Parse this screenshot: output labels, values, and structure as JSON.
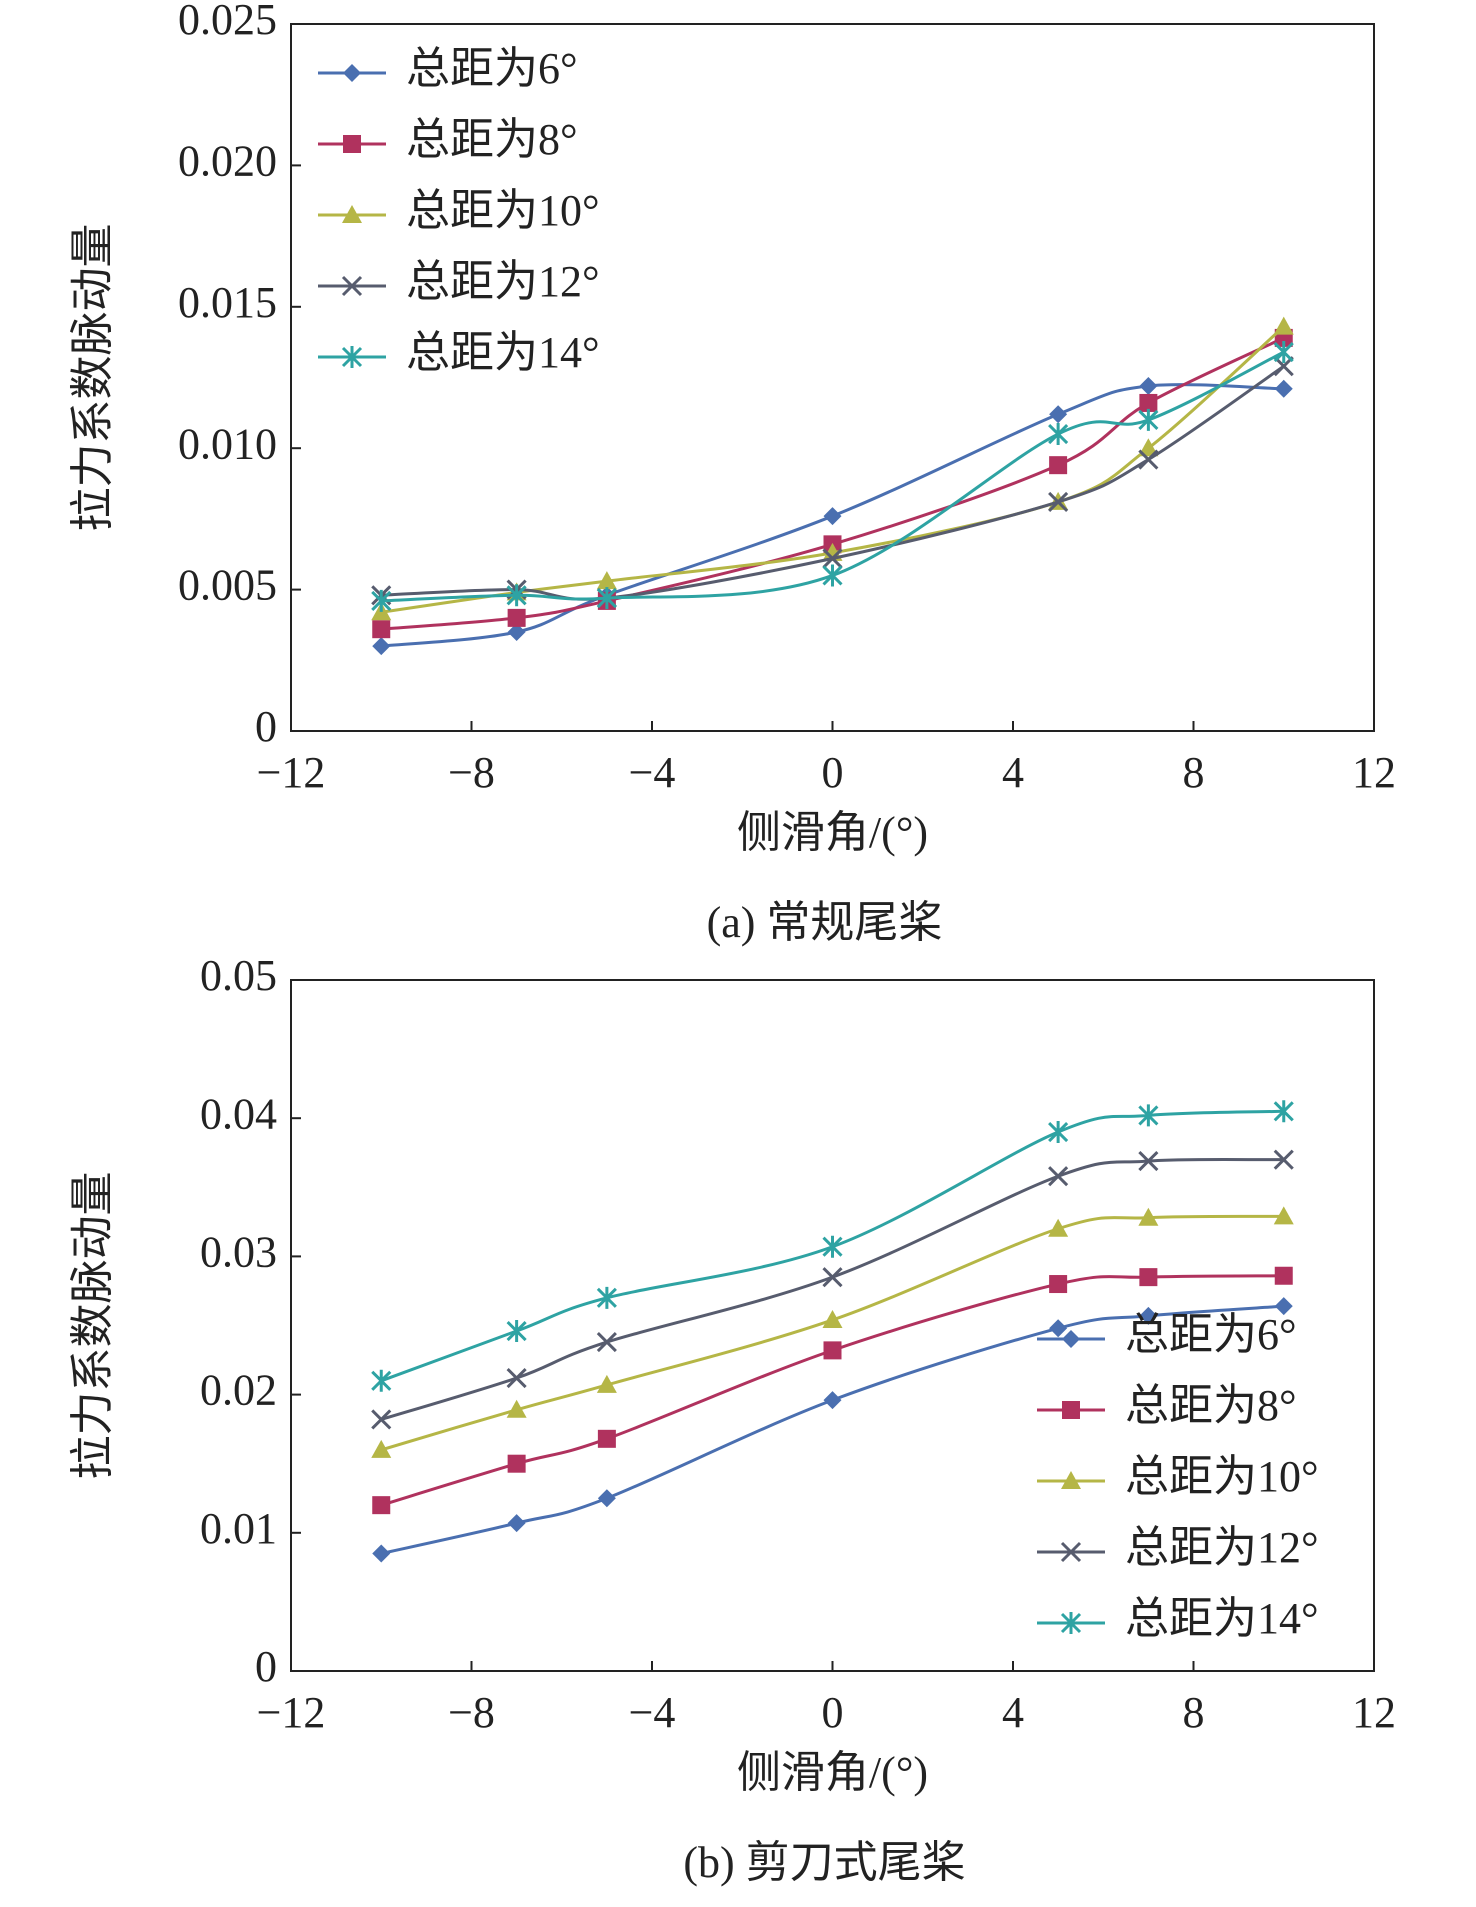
{
  "chart_data": [
    {
      "type": "line",
      "caption": "(a) 常规尾桨",
      "x_label": "侧滑角/(°)",
      "y_label": "拉力系数脉动量",
      "x": [
        -10,
        -7,
        -5,
        0,
        5,
        7,
        10
      ],
      "series": [
        {
          "name": "总距为6°",
          "color": "#4a6fb0",
          "marker": "diamond",
          "values": [
            0.003,
            0.0035,
            0.0048,
            0.0076,
            0.0112,
            0.0122,
            0.0121
          ]
        },
        {
          "name": "总距为8°",
          "color": "#b0325e",
          "marker": "square",
          "values": [
            0.0036,
            0.004,
            0.0046,
            0.0066,
            0.0094,
            0.0116,
            0.0139
          ]
        },
        {
          "name": "总距为10°",
          "color": "#b5b646",
          "marker": "triangle",
          "values": [
            0.0042,
            0.0049,
            0.0053,
            0.0063,
            0.0081,
            0.01,
            0.0143
          ]
        },
        {
          "name": "总距为12°",
          "color": "#575c6e",
          "marker": "cross",
          "values": [
            0.0048,
            0.005,
            0.0047,
            0.0061,
            0.0081,
            0.0096,
            0.0129
          ]
        },
        {
          "name": "总距为14°",
          "color": "#2ea3a3",
          "marker": "star",
          "values": [
            0.0046,
            0.0048,
            0.0047,
            0.0055,
            0.0105,
            0.011,
            0.0134
          ]
        }
      ],
      "xlim": [
        -12,
        12
      ],
      "xticks": [
        {
          "value": -12,
          "label": "−12"
        },
        {
          "value": -8,
          "label": "−8"
        },
        {
          "value": -4,
          "label": "−4"
        },
        0,
        4,
        8,
        12
      ],
      "ylim": [
        0,
        0.025
      ],
      "yticks": [
        0,
        0.005,
        {
          "value": 0.01,
          "label": "0.010"
        },
        0.015,
        {
          "value": 0.02,
          "label": "0.020"
        },
        0.025
      ],
      "legend": "upper-left"
    },
    {
      "type": "line",
      "caption": "(b) 剪刀式尾桨",
      "x_label": "侧滑角/(°)",
      "y_label": "拉力系数脉动量",
      "x": [
        -10,
        -7,
        -5,
        0,
        5,
        7,
        10
      ],
      "series": [
        {
          "name": "总距为6°",
          "color": "#4a6fb0",
          "marker": "diamond",
          "values": [
            0.0085,
            0.0107,
            0.0125,
            0.0196,
            0.0248,
            0.0257,
            0.0264
          ]
        },
        {
          "name": "总距为8°",
          "color": "#b0325e",
          "marker": "square",
          "values": [
            0.012,
            0.015,
            0.0168,
            0.0232,
            0.028,
            0.0285,
            0.0286
          ]
        },
        {
          "name": "总距为10°",
          "color": "#b5b646",
          "marker": "triangle",
          "values": [
            0.016,
            0.0189,
            0.0207,
            0.0254,
            0.032,
            0.0328,
            0.0329
          ]
        },
        {
          "name": "总距为12°",
          "color": "#575c6e",
          "marker": "cross",
          "values": [
            0.0182,
            0.0212,
            0.0238,
            0.0285,
            0.0358,
            0.0369,
            0.037
          ]
        },
        {
          "name": "总距为14°",
          "color": "#2ea3a3",
          "marker": "star",
          "values": [
            0.021,
            0.0246,
            0.027,
            0.0307,
            0.039,
            0.0402,
            0.0405
          ]
        }
      ],
      "xlim": [
        -12,
        12
      ],
      "xticks": [
        {
          "value": -12,
          "label": "−12"
        },
        {
          "value": -8,
          "label": "−8"
        },
        {
          "value": -4,
          "label": "−4"
        },
        0,
        4,
        8,
        12
      ],
      "ylim": [
        0,
        0.05
      ],
      "yticks": [
        0,
        0.01,
        0.02,
        0.03,
        0.04,
        0.05
      ],
      "legend": "lower-right"
    }
  ]
}
